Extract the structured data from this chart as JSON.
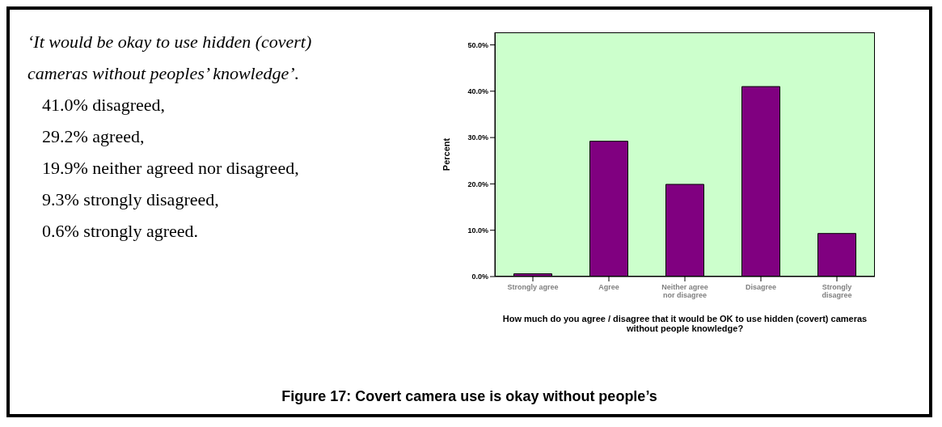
{
  "chart_data": {
    "type": "bar",
    "title": "Figure 17: Covert camera use is okay without people’s",
    "annotations": [
      "‘It would be okay to use hidden (covert) cameras without peoples’ knowledge’.",
      "41.0% disagreed,",
      "29.2% agreed,",
      "19.9% neither agreed nor disagreed,",
      "9.3% strongly disagreed,",
      "0.6% strongly agreed."
    ],
    "categories": [
      "Strongly agree",
      "Agree",
      "Neither agree nor disagree",
      "Disagree",
      "Strongly disagree"
    ],
    "values": [
      0.6,
      29.2,
      19.9,
      41.0,
      9.3
    ],
    "color": "#800080",
    "xlabel": "How much do you agree / disagree that it would be OK to use hidden (covert) cameras without people knowledge?",
    "ylabel": "Percent",
    "ylim": [
      0,
      52.7
    ],
    "yticks": [
      {
        "value": 0,
        "label": "0.0%"
      },
      {
        "value": 10,
        "label": "10.0%"
      },
      {
        "value": 20,
        "label": "20.0%"
      },
      {
        "value": 30,
        "label": "30.0%"
      },
      {
        "value": 40,
        "label": "40.0%"
      },
      {
        "value": 50,
        "label": "50.0%"
      }
    ]
  }
}
